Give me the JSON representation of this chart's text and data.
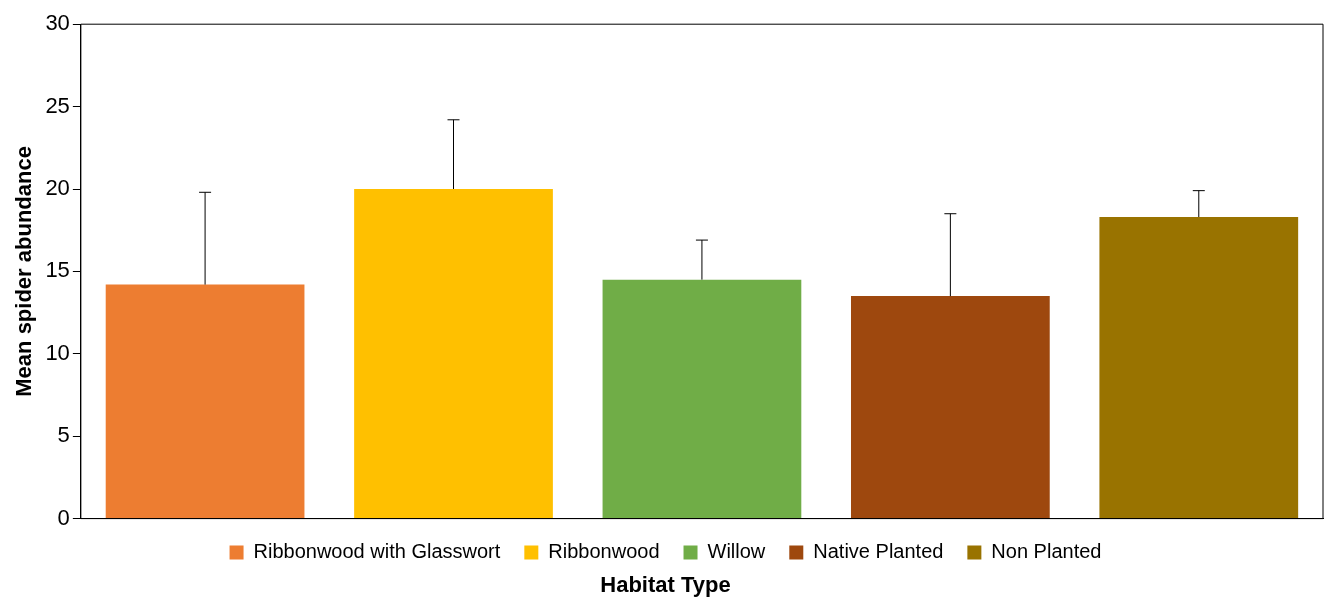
{
  "chart_data": {
    "type": "bar",
    "ylabel": "Mean spider abundance",
    "xlabel": "Habitat Type",
    "categories": [
      null,
      null,
      null,
      null,
      null
    ],
    "series": [
      {
        "name": "Ribbonwood with Glasswort",
        "color": "#ed7d31",
        "values": [
          14.2,
          null,
          null,
          null,
          null
        ],
        "errors": [
          [
            14.2,
            19.8
          ],
          null,
          null,
          null,
          null
        ]
      },
      {
        "name": "Ribbonwood",
        "color": "#ffc000",
        "values": [
          null,
          20.0,
          null,
          null,
          null
        ],
        "errors": [
          null,
          [
            20.0,
            24.2
          ],
          null,
          null,
          null
        ]
      },
      {
        "name": "Willow",
        "color": "#70ad47",
        "values": [
          null,
          null,
          14.5,
          null,
          null
        ],
        "errors": [
          null,
          null,
          [
            14.5,
            16.9
          ],
          null,
          null
        ]
      },
      {
        "name": "Native Planted",
        "color": "#9e480e",
        "values": [
          null,
          null,
          null,
          13.5,
          null
        ],
        "errors": [
          null,
          null,
          null,
          [
            13.5,
            18.5
          ],
          null
        ]
      },
      {
        "name": "Non Planted",
        "color": "#997300",
        "values": [
          null,
          null,
          null,
          null,
          18.3
        ],
        "errors": [
          null,
          null,
          null,
          null,
          [
            18.3,
            19.9
          ]
        ]
      }
    ],
    "ylim": [
      0,
      30
    ],
    "yticks": [
      0,
      5,
      10,
      15,
      20,
      25,
      30
    ],
    "grid": false,
    "legend": "bottom",
    "tick_labels": "y"
  }
}
